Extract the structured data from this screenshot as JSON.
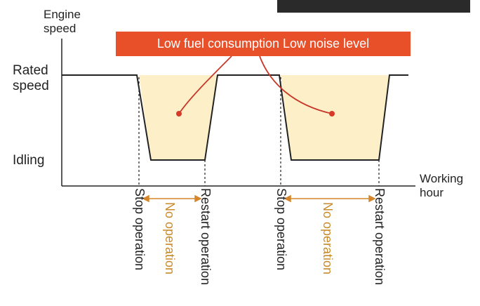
{
  "y_axis": {
    "title": [
      "Engine",
      "speed"
    ],
    "levels": [
      [
        "Rated",
        "speed"
      ],
      [
        "Idling"
      ]
    ]
  },
  "x_axis": {
    "title": [
      "Working",
      "hour"
    ]
  },
  "callout": "Low fuel consumption Low noise level",
  "events": [
    "Stop operation",
    "Restart operation",
    "Stop operation",
    "Restart operation"
  ],
  "gaps": [
    "No operation",
    "No operation"
  ]
}
